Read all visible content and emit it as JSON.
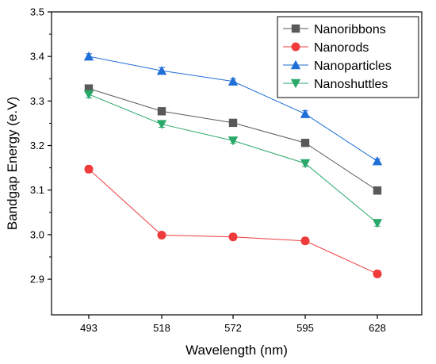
{
  "chart_data": {
    "type": "line",
    "title": "",
    "xlabel": "Wavelength (nm)",
    "ylabel": "Bandgap Energy (e.V)",
    "categories": [
      "493",
      "518",
      "572",
      "595",
      "628"
    ],
    "ylim": [
      2.82,
      3.5
    ],
    "yticks": [
      2.9,
      3.0,
      3.1,
      3.2,
      3.3,
      3.4,
      3.5
    ],
    "ytick_labels": [
      "2.9",
      "3.0",
      "3.1",
      "3.2",
      "3.3",
      "3.4",
      "3.5"
    ],
    "grid": false,
    "legend_position": "top-right",
    "series": [
      {
        "name": "Nanoribbons",
        "color": "#595959",
        "marker": "square",
        "values": [
          3.328,
          3.277,
          3.251,
          3.206,
          3.099
        ],
        "errors": [
          0.006,
          0.006,
          0.006,
          0.005,
          0.006
        ]
      },
      {
        "name": "Nanorods",
        "color": "#ef3b3b",
        "marker": "circle",
        "values": [
          3.147,
          2.999,
          2.995,
          2.986,
          2.912
        ],
        "errors": [
          0.007,
          0.006,
          0.007,
          0.007,
          0.007
        ]
      },
      {
        "name": "Nanoparticles",
        "color": "#1f6fd6",
        "marker": "triangle-up",
        "values": [
          3.4,
          3.368,
          3.344,
          3.271,
          3.165
        ],
        "errors": [
          0.006,
          0.007,
          0.006,
          0.007,
          0.005
        ]
      },
      {
        "name": "Nanoshuttles",
        "color": "#2aa86a",
        "marker": "triangle-down",
        "values": [
          3.315,
          3.248,
          3.211,
          3.16,
          3.026
        ],
        "errors": [
          0.008,
          0.007,
          0.006,
          0.007,
          0.007
        ]
      }
    ]
  }
}
